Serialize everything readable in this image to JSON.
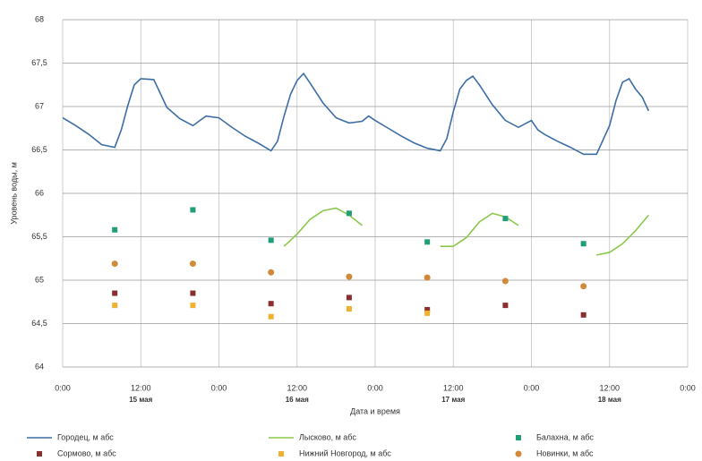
{
  "chart_data": {
    "type": "line",
    "ylabel": "Уровень воды, м",
    "xlabel": "Дата и время",
    "xlim": [
      0,
      96
    ],
    "xticks": [
      {
        "value": 0,
        "label": "0:00"
      },
      {
        "value": 12,
        "label": "12:00"
      },
      {
        "value": 24,
        "label": "0:00"
      },
      {
        "value": 36,
        "label": "12:00"
      },
      {
        "value": 48,
        "label": "0:00"
      },
      {
        "value": 60,
        "label": "12:00"
      },
      {
        "value": 72,
        "label": "0:00"
      },
      {
        "value": 84,
        "label": "12:00"
      },
      {
        "value": 96,
        "label": "0:00"
      }
    ],
    "date_labels": [
      {
        "value": 12,
        "label": "15 мая"
      },
      {
        "value": 36,
        "label": "16 мая"
      },
      {
        "value": 60,
        "label": "17 мая"
      },
      {
        "value": 84,
        "label": "18 мая"
      }
    ],
    "ylim": [
      64,
      68
    ],
    "yticks": [
      {
        "value": 64,
        "label": "64"
      },
      {
        "value": 64.5,
        "label": "64,5"
      },
      {
        "value": 65,
        "label": "65"
      },
      {
        "value": 65.5,
        "label": "65,5"
      },
      {
        "value": 66,
        "label": "66"
      },
      {
        "value": 66.5,
        "label": "66,5"
      },
      {
        "value": 67,
        "label": "67"
      },
      {
        "value": 67.5,
        "label": "67,5"
      },
      {
        "value": 68,
        "label": "68"
      }
    ],
    "grid": true,
    "legend": "bottom",
    "series": [
      {
        "name": "Городец, м абс",
        "color": "#3c6ea5",
        "kind": "line",
        "x": [
          0,
          2,
          4,
          6,
          8,
          9,
          10,
          11,
          12,
          14,
          16,
          18,
          20,
          22,
          24,
          26,
          28,
          30,
          32,
          33,
          34,
          35,
          36,
          37,
          38,
          40,
          42,
          44,
          46,
          47,
          48,
          50,
          52,
          54,
          56,
          58,
          59,
          60,
          61,
          62,
          63,
          64,
          66,
          68,
          70,
          72,
          73,
          74,
          76,
          78,
          80,
          82,
          84,
          85,
          86,
          87,
          88,
          89,
          90
        ],
        "values": [
          66.87,
          66.78,
          66.68,
          66.56,
          66.53,
          66.73,
          67.01,
          67.25,
          67.32,
          67.31,
          66.99,
          66.86,
          66.78,
          66.89,
          66.87,
          66.76,
          66.66,
          66.58,
          66.49,
          66.6,
          66.89,
          67.14,
          67.3,
          67.38,
          67.27,
          67.04,
          66.87,
          66.81,
          66.83,
          66.89,
          66.84,
          66.75,
          66.66,
          66.58,
          66.52,
          66.49,
          66.63,
          66.94,
          67.2,
          67.3,
          67.35,
          67.25,
          67.02,
          66.84,
          66.76,
          66.84,
          66.73,
          66.68,
          66.6,
          66.53,
          66.45,
          66.45,
          66.78,
          67.07,
          67.28,
          67.32,
          67.2,
          67.11,
          66.95
        ]
      },
      {
        "name": "Лысково, м абс",
        "color": "#8cc84b",
        "kind": "line",
        "x": [
          34,
          36,
          38,
          40,
          42,
          44,
          46,
          52,
          58,
          60,
          62,
          64,
          66,
          68,
          70,
          76,
          82,
          84,
          86,
          88,
          90
        ],
        "values": [
          65.39,
          65.53,
          65.7,
          65.8,
          65.83,
          65.75,
          65.63,
          null,
          65.39,
          65.39,
          65.49,
          65.67,
          65.77,
          65.73,
          65.63,
          null,
          65.29,
          65.32,
          65.42,
          65.57,
          65.75
        ]
      },
      {
        "name": "Балахна, м абс",
        "color": "#1f9e78",
        "kind": "square",
        "x": [
          8,
          20,
          32,
          44,
          56,
          68,
          80
        ],
        "values": [
          65.58,
          65.81,
          65.46,
          65.77,
          65.44,
          65.71,
          65.42
        ]
      },
      {
        "name": "Сормово, м абс",
        "color": "#8b2e2e",
        "kind": "square",
        "x": [
          8,
          20,
          32,
          44,
          56,
          68,
          80
        ],
        "values": [
          64.85,
          64.85,
          64.73,
          64.8,
          64.66,
          64.71,
          64.6
        ]
      },
      {
        "name": "Нижний Новгород, м абс",
        "color": "#f0b030",
        "kind": "square",
        "x": [
          8,
          20,
          32,
          44,
          56,
          68,
          80
        ],
        "values": [
          64.71,
          64.71,
          64.58,
          64.67,
          64.62,
          null,
          null
        ]
      },
      {
        "name": "Новинки, м абс",
        "color": "#d08a3a",
        "kind": "circle",
        "x": [
          8,
          20,
          32,
          44,
          56,
          68,
          80
        ],
        "values": [
          65.19,
          65.19,
          65.09,
          65.04,
          65.03,
          64.99,
          64.93
        ]
      }
    ]
  }
}
